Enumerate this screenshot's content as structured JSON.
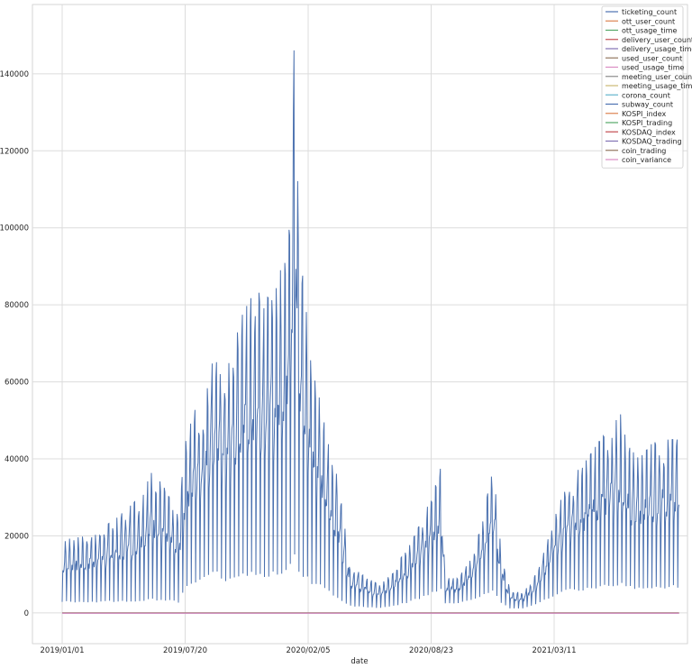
{
  "chart_data": {
    "type": "line",
    "xlabel": "date",
    "ylabel": "",
    "x_ticks": [
      "2019/01/01",
      "2019/07/20",
      "2020/02/05",
      "2020/08/23",
      "2021/03/11"
    ],
    "y_ticks": [
      "0",
      "20000",
      "40000",
      "60000",
      "80000",
      "100000",
      "120000",
      "140000"
    ],
    "ylim": [
      -8000,
      158000
    ],
    "grid": true,
    "legend_placement": "top-right",
    "series": [
      {
        "name": "ticketing_count",
        "color": "#4c72b0"
      },
      {
        "name": "ott_user_count",
        "color": "#dd8452"
      },
      {
        "name": "ott_usage_time",
        "color": "#55a868"
      },
      {
        "name": "delivery_user_count",
        "color": "#c44e52"
      },
      {
        "name": "delivery_usage_time",
        "color": "#8172b3"
      },
      {
        "name": "used_user_count",
        "color": "#937860"
      },
      {
        "name": "used_usage_time",
        "color": "#da8bc3"
      },
      {
        "name": "meeting_user_count",
        "color": "#8c8c8c"
      },
      {
        "name": "meeting_usage_time",
        "color": "#ccb974"
      },
      {
        "name": "corona_count",
        "color": "#64b5cd"
      },
      {
        "name": "subway_count",
        "color": "#4c72b0"
      },
      {
        "name": "KOSPI_index",
        "color": "#dd8452"
      },
      {
        "name": "KOSPI_trading",
        "color": "#55a868"
      },
      {
        "name": "KOSDAQ_index",
        "color": "#c44e52"
      },
      {
        "name": "KOSDAQ_trading",
        "color": "#8172b3"
      },
      {
        "name": "coin_trading",
        "color": "#937860"
      },
      {
        "name": "coin_variance",
        "color": "#da8bc3"
      }
    ],
    "main_series": {
      "name": "subway_count",
      "x_start": "2019/01/01",
      "x_end": "2021/09/30",
      "weekly_envelope": [
        [
          0,
          1500,
          19000
        ],
        [
          6,
          1500,
          20000
        ],
        [
          12,
          1200,
          24000
        ],
        [
          18,
          1000,
          30000
        ],
        [
          21,
          1000,
          37000
        ],
        [
          24,
          800,
          32000
        ],
        [
          27,
          800,
          25000
        ],
        [
          29,
          4000,
          49000
        ],
        [
          33,
          5000,
          57000
        ],
        [
          35,
          6000,
          70000
        ],
        [
          38,
          4000,
          62000
        ],
        [
          42,
          4000,
          78000
        ],
        [
          45,
          4000,
          84000
        ],
        [
          49,
          4000,
          81000
        ],
        [
          52,
          4000,
          95000
        ],
        [
          54,
          4000,
          150000
        ],
        [
          55,
          4000,
          97000
        ],
        [
          57,
          3500,
          75000
        ],
        [
          59,
          3000,
          60000
        ],
        [
          62,
          2500,
          43000
        ],
        [
          64,
          1500,
          35000
        ],
        [
          67,
          1000,
          12000
        ],
        [
          71,
          800,
          9000
        ],
        [
          74,
          800,
          7000
        ],
        [
          77,
          1000,
          12000
        ],
        [
          80,
          1500,
          16000
        ],
        [
          84,
          2500,
          25000
        ],
        [
          87,
          3500,
          34000
        ],
        [
          88,
          3500,
          38000
        ],
        [
          89,
          2000,
          9000
        ],
        [
          92,
          2000,
          9000
        ],
        [
          95,
          2500,
          14000
        ],
        [
          98,
          3000,
          25000
        ],
        [
          100,
          3000,
          39000
        ],
        [
          102,
          1500,
          16000
        ],
        [
          104,
          800,
          6000
        ],
        [
          107,
          800,
          5000
        ],
        [
          110,
          1500,
          10000
        ],
        [
          113,
          2500,
          20000
        ],
        [
          116,
          3500,
          30000
        ],
        [
          119,
          3500,
          36000
        ],
        [
          122,
          3500,
          40000
        ],
        [
          125,
          3500,
          45000
        ],
        [
          128,
          3500,
          49000
        ],
        [
          130,
          3500,
          52000
        ],
        [
          131,
          3500,
          44000
        ],
        [
          134,
          3500,
          40000
        ],
        [
          137,
          3500,
          44000
        ],
        [
          139,
          3500,
          45000
        ]
      ],
      "other_series_level": 0
    }
  }
}
